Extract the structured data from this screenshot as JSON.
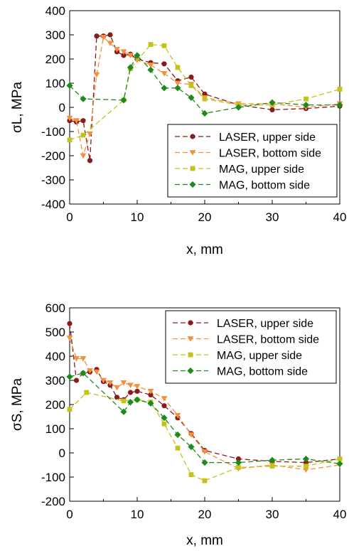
{
  "chart_data": [
    {
      "type": "line",
      "ylabel": "σL, MPa",
      "xlabel": "x, mm",
      "xlim": [
        0,
        40
      ],
      "ylim": [
        -400,
        400
      ],
      "xticks": [
        "0",
        "10",
        "20",
        "30",
        "40"
      ],
      "yticks": [
        "400",
        "300",
        "200",
        "100",
        "0",
        "-100",
        "-200",
        "-300",
        "-400"
      ],
      "grid": false,
      "legend_position": "bottom-right",
      "series": [
        {
          "name": "LASER, upper side",
          "color": "#8b1a1a",
          "marker": "circle",
          "points": [
            [
              0,
              -55
            ],
            [
              1,
              -60
            ],
            [
              2,
              -55
            ],
            [
              3,
              -220
            ],
            [
              4,
              295
            ],
            [
              5,
              295
            ],
            [
              6,
              300
            ],
            [
              7,
              230
            ],
            [
              8,
              215
            ],
            [
              9,
              220
            ],
            [
              10,
              200
            ],
            [
              12,
              185
            ],
            [
              14,
              180
            ],
            [
              16,
              110
            ],
            [
              18,
              125
            ],
            [
              20,
              55
            ],
            [
              25,
              10
            ],
            [
              30,
              -10
            ],
            [
              35,
              -5
            ],
            [
              40,
              5
            ]
          ]
        },
        {
          "name": "LASER, bottom side",
          "color": "#f5913e",
          "marker": "triangle-down",
          "points": [
            [
              0,
              -45
            ],
            [
              1,
              -55
            ],
            [
              2,
              -200
            ],
            [
              3,
              -110
            ],
            [
              4,
              135
            ],
            [
              5,
              290
            ],
            [
              6,
              265
            ],
            [
              7,
              240
            ],
            [
              8,
              230
            ],
            [
              9,
              215
            ],
            [
              10,
              195
            ],
            [
              12,
              175
            ],
            [
              14,
              140
            ],
            [
              16,
              100
            ],
            [
              18,
              95
            ],
            [
              20,
              40
            ],
            [
              25,
              15
            ],
            [
              30,
              15
            ],
            [
              35,
              0
            ],
            [
              40,
              15
            ]
          ]
        },
        {
          "name": "MAG, upper side",
          "color": "#c3c41a",
          "marker": "square",
          "points": [
            [
              0,
              -135
            ],
            [
              2,
              -115
            ],
            [
              8,
              30
            ],
            [
              9,
              160
            ],
            [
              12,
              260
            ],
            [
              14,
              255
            ],
            [
              16,
              165
            ],
            [
              18,
              90
            ],
            [
              20,
              35
            ],
            [
              25,
              10
            ],
            [
              30,
              10
            ],
            [
              35,
              35
            ],
            [
              40,
              75
            ]
          ]
        },
        {
          "name": "MAG, bottom side",
          "color": "#1e8a1e",
          "marker": "diamond",
          "points": [
            [
              0,
              90
            ],
            [
              2,
              35
            ],
            [
              8,
              30
            ],
            [
              9,
              165
            ],
            [
              10,
              215
            ],
            [
              12,
              155
            ],
            [
              14,
              80
            ],
            [
              16,
              80
            ],
            [
              18,
              40
            ],
            [
              20,
              -25
            ],
            [
              25,
              0
            ],
            [
              30,
              20
            ],
            [
              35,
              10
            ],
            [
              40,
              10
            ]
          ]
        }
      ]
    },
    {
      "type": "line",
      "ylabel": "σS, MPa",
      "xlabel": "x, mm",
      "xlim": [
        0,
        40
      ],
      "ylim": [
        -200,
        600
      ],
      "xticks": [
        "0",
        "10",
        "20",
        "30",
        "40"
      ],
      "yticks": [
        "600",
        "500",
        "400",
        "300",
        "200",
        "100",
        "0",
        "-100",
        "-200"
      ],
      "grid": false,
      "legend_position": "top-right",
      "series": [
        {
          "name": "LASER, upper side",
          "color": "#8b1a1a",
          "marker": "circle",
          "points": [
            [
              0,
              535
            ],
            [
              1,
              300
            ],
            [
              2,
              330
            ],
            [
              3,
              335
            ],
            [
              4,
              345
            ],
            [
              5,
              295
            ],
            [
              6,
              280
            ],
            [
              7,
              230
            ],
            [
              8,
              220
            ],
            [
              9,
              250
            ],
            [
              10,
              255
            ],
            [
              12,
              240
            ],
            [
              14,
              195
            ],
            [
              16,
              145
            ],
            [
              18,
              80
            ],
            [
              20,
              10
            ],
            [
              25,
              -25
            ],
            [
              30,
              -35
            ],
            [
              35,
              -40
            ],
            [
              40,
              -25
            ]
          ]
        },
        {
          "name": "LASER, bottom side",
          "color": "#f5913e",
          "marker": "triangle-down",
          "points": [
            [
              0,
              475
            ],
            [
              1,
              390
            ],
            [
              2,
              390
            ],
            [
              3,
              340
            ],
            [
              4,
              335
            ],
            [
              5,
              300
            ],
            [
              6,
              290
            ],
            [
              7,
              270
            ],
            [
              8,
              290
            ],
            [
              9,
              280
            ],
            [
              10,
              275
            ],
            [
              12,
              255
            ],
            [
              14,
              225
            ],
            [
              16,
              155
            ],
            [
              18,
              75
            ],
            [
              20,
              5
            ],
            [
              25,
              -65
            ],
            [
              30,
              -50
            ],
            [
              35,
              -70
            ],
            [
              40,
              -50
            ]
          ]
        },
        {
          "name": "MAG, upper side",
          "color": "#c3c41a",
          "marker": "square",
          "points": [
            [
              0,
              180
            ],
            [
              2.5,
              250
            ],
            [
              8,
              215
            ],
            [
              10,
              220
            ],
            [
              12,
              210
            ],
            [
              14,
              120
            ],
            [
              16,
              20
            ],
            [
              18,
              -90
            ],
            [
              20,
              -115
            ],
            [
              25,
              -60
            ],
            [
              30,
              -55
            ],
            [
              35,
              -55
            ],
            [
              40,
              -25
            ]
          ]
        },
        {
          "name": "MAG, bottom side",
          "color": "#1e8a1e",
          "marker": "diamond",
          "points": [
            [
              0,
              315
            ],
            [
              2,
              330
            ],
            [
              8,
              170
            ],
            [
              9,
              210
            ],
            [
              10,
              220
            ],
            [
              12,
              205
            ],
            [
              14,
              145
            ],
            [
              16,
              75
            ],
            [
              18,
              25
            ],
            [
              20,
              -40
            ],
            [
              25,
              -40
            ],
            [
              30,
              -30
            ],
            [
              35,
              -25
            ],
            [
              40,
              -45
            ]
          ]
        }
      ]
    }
  ]
}
